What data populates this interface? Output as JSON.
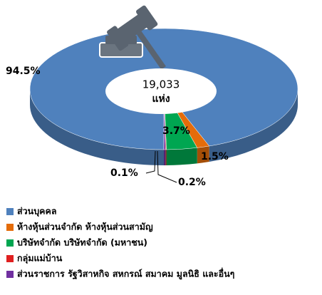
{
  "chart_data": {
    "type": "pie3d",
    "center_value": "19,033",
    "center_unit": "แห่ง",
    "categories": [
      "ส่วนบุคคล",
      "ห้างหุ้นส่วนจำกัด ห้างหุ้นส่วนสามัญ",
      "บริษัทจำกัด บริษัทจำกัด (มหาชน)",
      "กลุ่มแม่บ้าน",
      "ส่วนราชการ รัฐวิสาหกิจ สหกรณ์ สมาคม มูลนิธิ และอื่นๆ"
    ],
    "values": [
      94.5,
      1.5,
      3.7,
      0.1,
      0.2
    ],
    "value_labels": [
      "94.5%",
      "1.5%",
      "3.7%",
      "0.1%",
      "0.2%"
    ],
    "colors": [
      "#4f81bd",
      "#e46c0a",
      "#00a651",
      "#e02020",
      "#7030a0"
    ]
  }
}
